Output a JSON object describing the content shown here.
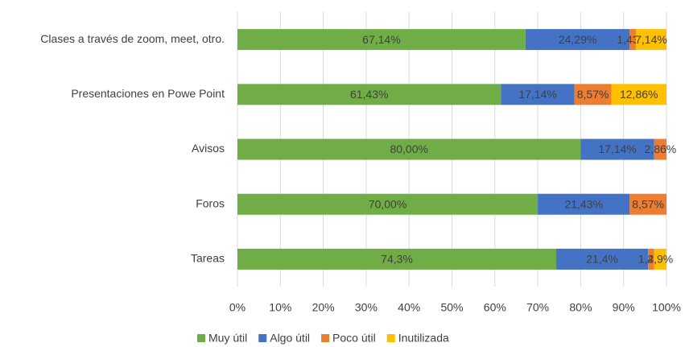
{
  "chart_data": {
    "type": "stacked-bar-horizontal",
    "categories": [
      "Clases a través de zoom, meet, otro.",
      "Presentaciones en Powe Point",
      "Avisos",
      "Foros",
      "Tareas"
    ],
    "series": [
      {
        "name": "Muy útil",
        "color": "#70ad47",
        "values": [
          67.14,
          61.43,
          80.0,
          70.0,
          74.3
        ],
        "value_labels": [
          "67,14%",
          "61,43%",
          "80,00%",
          "70,00%",
          "74,3%"
        ]
      },
      {
        "name": "Algo útil",
        "color": "#4472c4",
        "values": [
          24.29,
          17.14,
          17.14,
          21.43,
          21.4
        ],
        "value_labels": [
          "24,29%",
          "17,14%",
          "17,14%",
          "21,43%",
          "21,4%"
        ]
      },
      {
        "name": "Poco útil",
        "color": "#ed7d31",
        "values": [
          1.43,
          8.57,
          2.86,
          8.57,
          1.4
        ],
        "value_labels": [
          "1,43%",
          "8,57%",
          "2,86%",
          "8,57%",
          "1,4%"
        ]
      },
      {
        "name": "Inutilizada",
        "color": "#ffc000",
        "values": [
          7.14,
          12.86,
          0,
          0,
          2.9
        ],
        "value_labels": [
          "7,14%",
          "12,86%",
          null,
          null,
          "2,9%"
        ]
      }
    ],
    "xlim": [
      0,
      100
    ],
    "xticks": [
      {
        "value": 0,
        "label": "0%"
      },
      {
        "value": 10,
        "label": "10%"
      },
      {
        "value": 20,
        "label": "20%"
      },
      {
        "value": 30,
        "label": "30%"
      },
      {
        "value": 40,
        "label": "40%"
      },
      {
        "value": 50,
        "label": "50%"
      },
      {
        "value": 60,
        "label": "60%"
      },
      {
        "value": 70,
        "label": "70%"
      },
      {
        "value": 80,
        "label": "80%"
      },
      {
        "value": 90,
        "label": "90%"
      },
      {
        "value": 100,
        "label": "100%"
      }
    ],
    "grid": true,
    "legend": "bottom"
  }
}
